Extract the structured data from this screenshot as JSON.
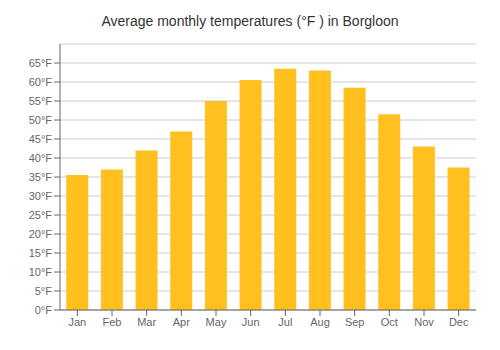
{
  "chart_data": {
    "type": "bar",
    "title": "Average monthly temperatures (°F ) in Borgloon",
    "categories": [
      "Jan",
      "Feb",
      "Mar",
      "Apr",
      "May",
      "Jun",
      "Jul",
      "Aug",
      "Sep",
      "Oct",
      "Nov",
      "Dec"
    ],
    "values": [
      35.5,
      37.0,
      42.0,
      47.0,
      55.0,
      60.5,
      63.5,
      63.0,
      58.5,
      51.5,
      43.0,
      37.5
    ],
    "color": "#FFC020",
    "ylim": [
      0,
      70
    ],
    "yticks": [
      {
        "value": 0,
        "label": "0°F"
      },
      {
        "value": 5,
        "label": "5°F"
      },
      {
        "value": 10,
        "label": "10°F"
      },
      {
        "value": 15,
        "label": "15°F"
      },
      {
        "value": 20,
        "label": "20°F"
      },
      {
        "value": 25,
        "label": "25°F"
      },
      {
        "value": 30,
        "label": "30°F"
      },
      {
        "value": 35,
        "label": "35°F"
      },
      {
        "value": 40,
        "label": "40°F"
      },
      {
        "value": 45,
        "label": "45°F"
      },
      {
        "value": 50,
        "label": "50°F"
      },
      {
        "value": 55,
        "label": "55°F"
      },
      {
        "value": 60,
        "label": "60°F"
      },
      {
        "value": 65,
        "label": "65°F"
      }
    ],
    "grid": true
  }
}
